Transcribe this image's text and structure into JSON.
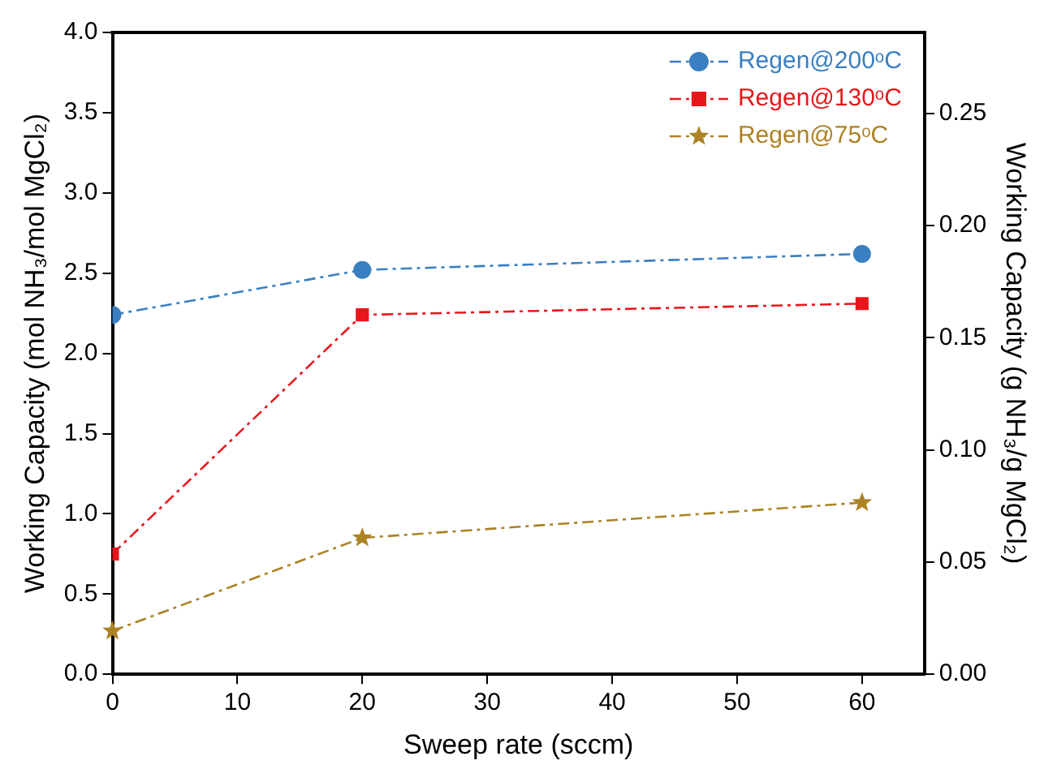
{
  "chart_data": {
    "type": "line",
    "xlabel": "Sweep rate (sccm)",
    "ylabel": "Working Capacity (mol NH₃/mol MgCl₂)",
    "y2label": "Working Capacity (g NH₃/g MgCl₂)",
    "x": [
      0,
      20,
      60
    ],
    "series": [
      {
        "name": "Regen@200ᵒC",
        "color": "#3a7fc1",
        "marker": "circle",
        "values": [
          2.24,
          2.52,
          2.62
        ]
      },
      {
        "name": "Regen@130ᵒC",
        "color": "#e8161b",
        "marker": "square",
        "values": [
          0.75,
          2.24,
          2.31
        ]
      },
      {
        "name": "Regen@75ᵒC",
        "color": "#ad8224",
        "marker": "star",
        "values": [
          0.27,
          0.85,
          1.07
        ]
      }
    ],
    "xlim": [
      0,
      65
    ],
    "xticks": [
      0,
      10,
      20,
      30,
      40,
      50,
      60
    ],
    "ylim": [
      0,
      4
    ],
    "yticks": [
      {
        "value": 0,
        "label": "0.0"
      },
      0.5,
      {
        "value": 1,
        "label": "1.0"
      },
      1.5,
      {
        "value": 2,
        "label": "2.0"
      },
      2.5,
      {
        "value": 3,
        "label": "3.0"
      },
      3.5,
      {
        "value": 4,
        "label": "4.0"
      }
    ],
    "y2lim": [
      0,
      0.286
    ],
    "y2ticks": [
      {
        "value": 0,
        "label": "0.00"
      },
      {
        "value": 0.05,
        "label": "0.05"
      },
      {
        "value": 0.1,
        "label": "0.10"
      },
      {
        "value": 0.15,
        "label": "0.15"
      },
      {
        "value": 0.2,
        "label": "0.20"
      },
      {
        "value": 0.25,
        "label": "0.25"
      }
    ],
    "grid": false,
    "legend": "top right",
    "line_style": "dashed"
  }
}
